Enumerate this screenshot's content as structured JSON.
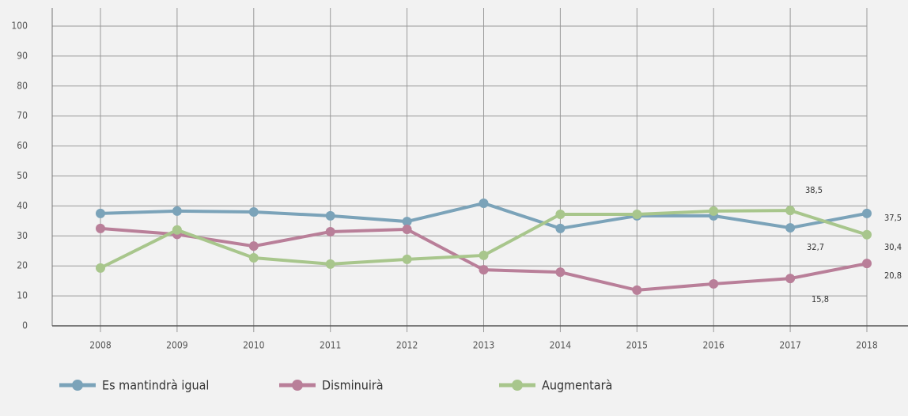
{
  "chart_data": {
    "type": "line",
    "categories": [
      "2008",
      "2009",
      "2010",
      "2011",
      "2012",
      "2013",
      "2014",
      "2015",
      "2016",
      "2017",
      "2018"
    ],
    "series": [
      {
        "name": "Es mantindrà igual",
        "color": "#7ba3b9",
        "values": [
          37.5,
          38.3,
          38,
          36.7,
          34.8,
          40.9,
          32.5,
          36.7,
          36.7,
          32.7,
          37.5
        ],
        "value_labels": [
          null,
          null,
          null,
          null,
          null,
          null,
          null,
          null,
          null,
          "32,7",
          "37,5"
        ]
      },
      {
        "name": "Disminuirà",
        "color": "#b97f99",
        "values": [
          32.5,
          30.5,
          26.6,
          31.4,
          32.2,
          18.7,
          17.9,
          11.9,
          14,
          15.8,
          20.8
        ],
        "value_labels": [
          null,
          null,
          null,
          null,
          null,
          null,
          null,
          null,
          null,
          "15,8",
          "20,8"
        ]
      },
      {
        "name": "Augmentarà",
        "color": "#a8c68c",
        "values": [
          19.3,
          32,
          22.7,
          20.6,
          22.2,
          23.5,
          37.2,
          37.2,
          38.3,
          38.5,
          30.4
        ],
        "value_labels": [
          null,
          null,
          null,
          null,
          null,
          null,
          null,
          null,
          null,
          "38,5",
          "30,4"
        ]
      }
    ],
    "ylim": [
      0,
      100
    ],
    "yticks": [
      0,
      10,
      20,
      30,
      40,
      50,
      60,
      70,
      80,
      90,
      100
    ],
    "grid": true,
    "legend": "bottom"
  }
}
